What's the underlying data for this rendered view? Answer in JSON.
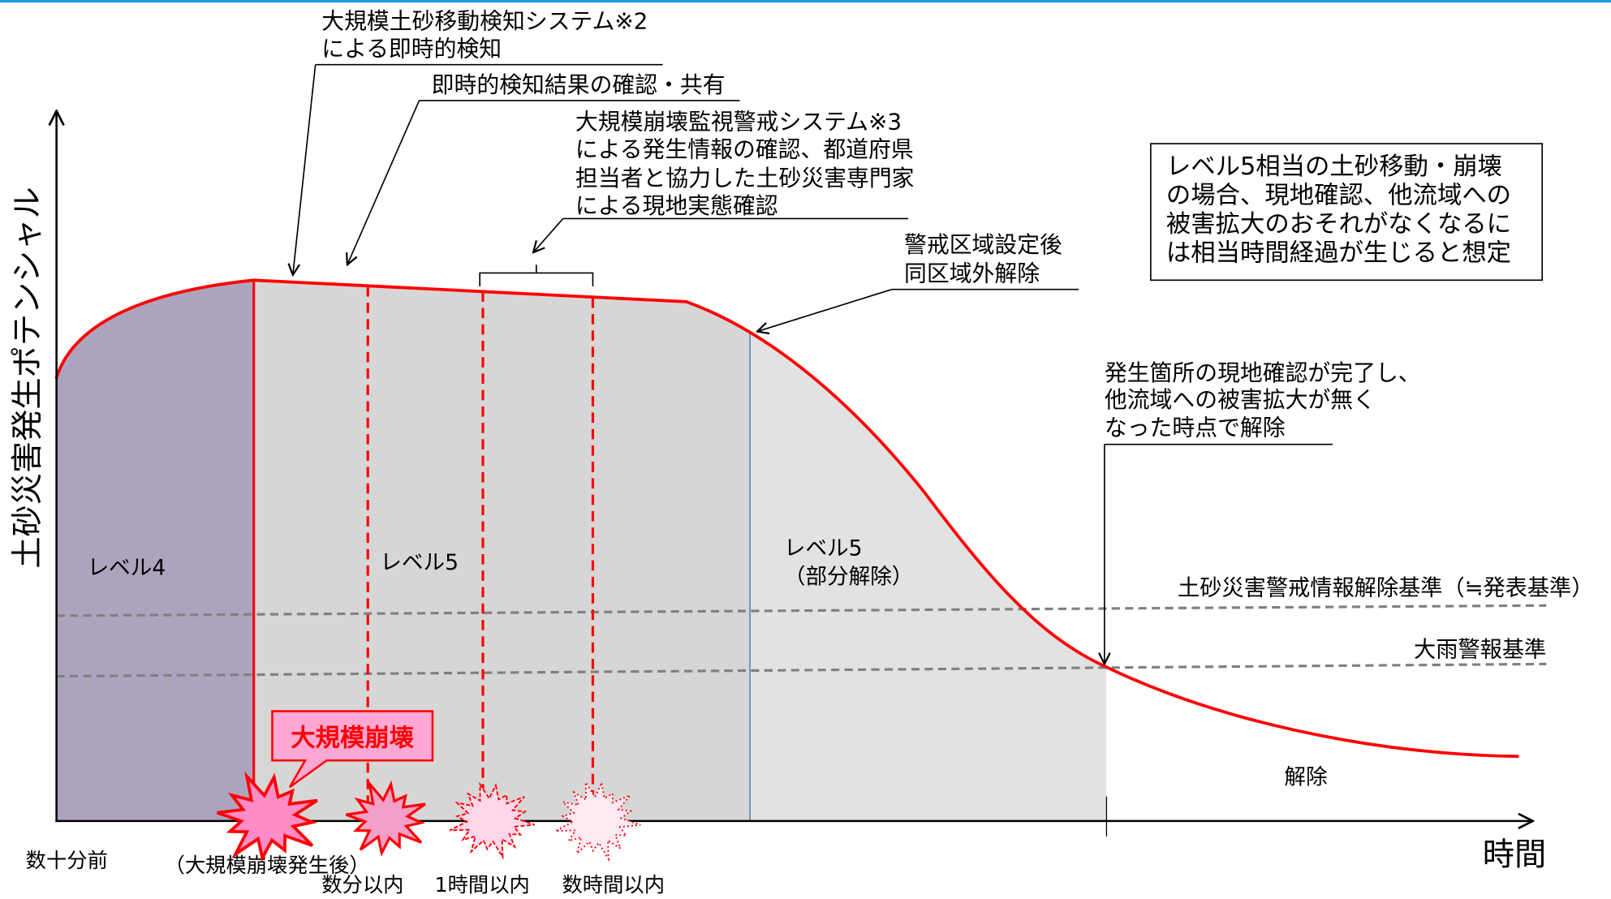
{
  "axes": {
    "y_label": "土砂災害発生ポテンシャル",
    "x_label": "時間"
  },
  "levels": {
    "level4": "レベル4",
    "level5": "レベル5",
    "level5_partial": {
      "label": "レベル5",
      "note": "（部分解除）"
    },
    "released": "解除"
  },
  "thresholds": {
    "warning_info_release": "土砂災害警戒情報解除基準（≒発表基準）",
    "heavy_rain_warning": "大雨警報基準"
  },
  "timeline": {
    "before": "数十分前",
    "after_collapse": "（大規模崩壊発生後）",
    "within_minutes": "数分以内",
    "within_one_hour": "1時間以内",
    "within_hours": "数時間以内"
  },
  "callout": {
    "label": "大規模崩壊"
  },
  "annotations": {
    "instant_detection": [
      "大規模土砂移動検知システム※2",
      "による即時的検知"
    ],
    "confirm_share": [
      "即時的検知結果の確認・共有"
    ],
    "field_survey": [
      "大規模崩壊監視警戒システム※3",
      "による発生情報の確認、都道府県",
      "担当者と協力した土砂災害専門家",
      "による現地実態確認"
    ],
    "partial_release": [
      "警戒区域設定後",
      "同区域外解除"
    ],
    "full_release": [
      "発生箇所の現地確認が完了し、",
      "他流域への被害拡大が無く",
      "なった時点で解除"
    ]
  },
  "note_box": {
    "lines": [
      "レベル5相当の土砂移動・崩壊",
      "の場合、現地確認、他流域への",
      "被害拡大のおそれがなくなるに",
      "は相当時間経過が生じると想定"
    ]
  },
  "colors": {
    "header_rule": "#1F9BDE",
    "level4_fill": "#ACA4BE",
    "level5_fill": "#D6D6D6",
    "level5_partial_fill": "#E2E2E2",
    "potential_curve": "#FF0000",
    "event_markers": "#FF0000",
    "threshold_lines": "#808080",
    "partial_release_boundary": "#4F81BD",
    "callout_fill": "#FFA8D4",
    "callout_accent": "#FF0000",
    "burst_fill": "#FF8CC6",
    "burst_fill_minutes": "#F2A0C8",
    "burst_fill_hour": "#FFD6EA",
    "burst_fill_hours": "#FFEAF4"
  }
}
